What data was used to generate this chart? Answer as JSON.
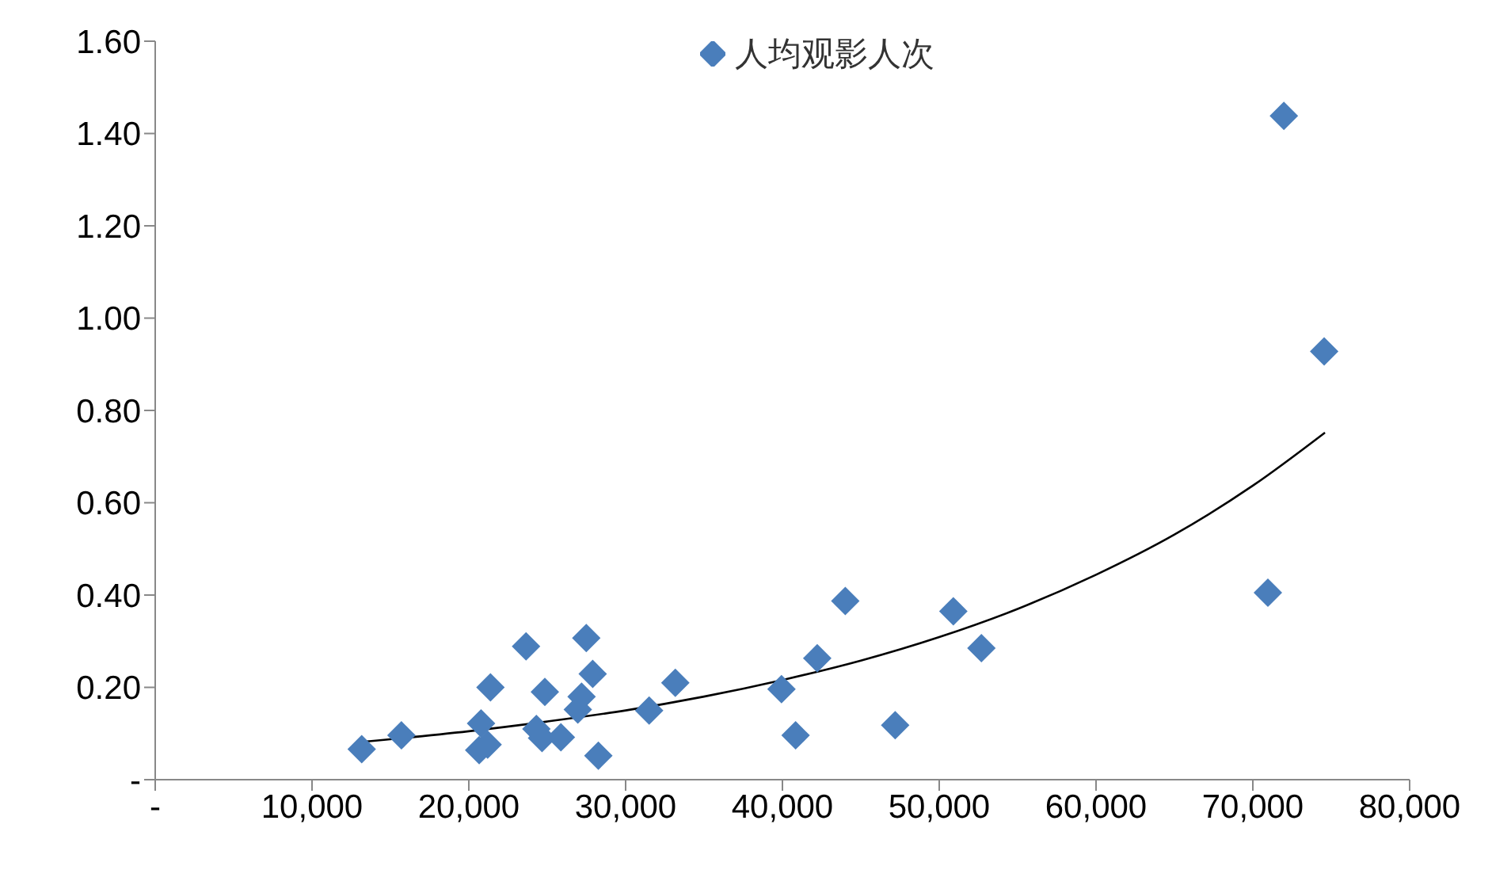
{
  "chart_data": {
    "type": "scatter",
    "legend": "top",
    "marker": "diamond",
    "grid": false,
    "xlim": [
      0,
      80000
    ],
    "xticks": [
      {
        "value": 0,
        "label": "-"
      },
      {
        "value": 10000,
        "label": "10,000"
      },
      {
        "value": 20000,
        "label": "20,000"
      },
      {
        "value": 30000,
        "label": "30,000"
      },
      {
        "value": 40000,
        "label": "40,000"
      },
      {
        "value": 50000,
        "label": "50,000"
      },
      {
        "value": 60000,
        "label": "60,000"
      },
      {
        "value": 70000,
        "label": "70,000"
      },
      {
        "value": 80000,
        "label": "80,000"
      }
    ],
    "ylim": [
      0,
      1.6
    ],
    "yticks": [
      {
        "value": 0,
        "label": "-"
      },
      {
        "value": 0.2,
        "label": "0.20"
      },
      {
        "value": 0.4,
        "label": "0.40"
      },
      {
        "value": 0.6,
        "label": "0.60"
      },
      {
        "value": 0.8,
        "label": "0.80"
      },
      {
        "value": 1.0,
        "label": "1.00"
      },
      {
        "value": 1.2,
        "label": "1.20"
      },
      {
        "value": 1.4,
        "label": "1.40"
      },
      {
        "value": 1.6,
        "label": "1.60"
      }
    ],
    "series": [
      {
        "name": "人均观影人次",
        "color": "#4a7ebb",
        "x": [
          13170,
          15700,
          20780,
          20660,
          21200,
          21380,
          23650,
          24310,
          24670,
          24850,
          25870,
          26950,
          27190,
          27490,
          27900,
          28260,
          31500,
          33170,
          39940,
          40840,
          42220,
          44010,
          47190,
          50900,
          52690,
          70960,
          71980,
          74550
        ],
        "values": [
          0.066,
          0.096,
          0.122,
          0.064,
          0.076,
          0.2,
          0.289,
          0.11,
          0.09,
          0.19,
          0.092,
          0.152,
          0.18,
          0.307,
          0.229,
          0.052,
          0.15,
          0.21,
          0.196,
          0.096,
          0.263,
          0.387,
          0.118,
          0.365,
          0.285,
          0.405,
          1.438,
          0.928
        ]
      },
      {
        "type": "line",
        "color": "#000000",
        "marker": "none",
        "x": [
          13200,
          20000,
          25000,
          30000,
          35000,
          40000,
          45000,
          50000,
          55000,
          60000,
          65000,
          70000,
          74600
        ],
        "values": [
          0.082,
          0.105,
          0.126,
          0.15,
          0.18,
          0.216,
          0.258,
          0.309,
          0.37,
          0.444,
          0.531,
          0.637,
          0.752
        ]
      }
    ]
  }
}
